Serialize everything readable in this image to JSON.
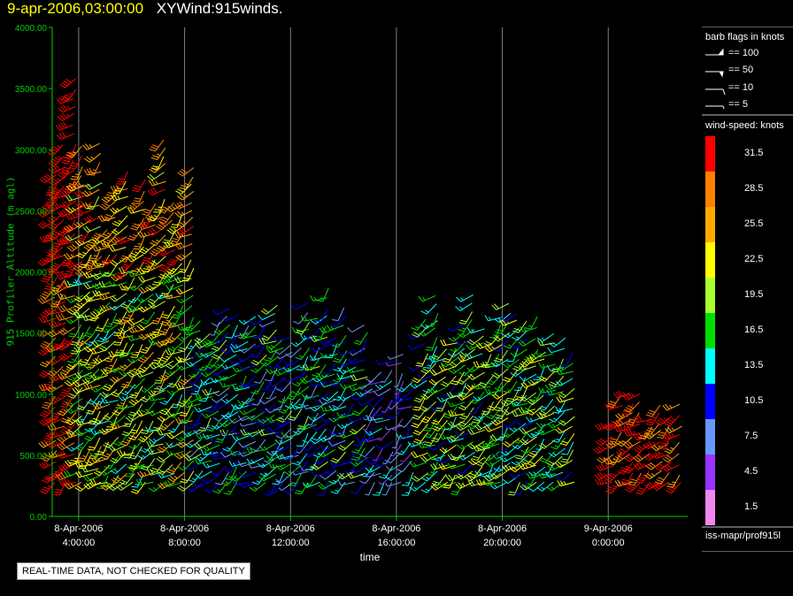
{
  "title": {
    "date": "9-apr-2006,03:00:00",
    "name": "XYWind:915winds."
  },
  "colors": {
    "grid": "#808080",
    "axis": "#00cc00",
    "tick_text": "#00cc00"
  },
  "chart_data": {
    "type": "scatter",
    "xlabel": "time",
    "ylabel": "915 Profiler Altitude (m agl)",
    "ylim": [
      0,
      4000
    ],
    "y_ticks": [
      "0.00",
      "500.00",
      "1000.00",
      "1500.00",
      "2000.00",
      "2500.00",
      "3000.00",
      "3500.00",
      "4000.00"
    ],
    "x_ticks": [
      {
        "date": "8-Apr-2006",
        "time": "4:00:00"
      },
      {
        "date": "8-Apr-2006",
        "time": "8:00:00"
      },
      {
        "date": "8-Apr-2006",
        "time": "12:00:00"
      },
      {
        "date": "8-Apr-2006",
        "time": "16:00:00"
      },
      {
        "date": "8-Apr-2006",
        "time": "20:00:00"
      },
      {
        "date": "9-Apr-2006",
        "time": "0:00:00"
      }
    ],
    "xlim": [
      "2006-04-08T03:00:00",
      "2006-04-09T03:00:00"
    ],
    "grid": "vertical",
    "legend_position": "right",
    "flag_legend_title": "barb flags in knots",
    "flag_legend": [
      "== 100",
      "== 50",
      "== 10",
      "== 5"
    ],
    "speed_legend_title": "wind-speed: knots",
    "speed_bins": [
      {
        "label": "31.5",
        "color": "#ff0000"
      },
      {
        "label": "28.5",
        "color": "#ff8000"
      },
      {
        "label": "25.5",
        "color": "#ffaa00"
      },
      {
        "label": "22.5",
        "color": "#ffff00"
      },
      {
        "label": "19.5",
        "color": "#aaff33"
      },
      {
        "label": "16.5",
        "color": "#00dd00"
      },
      {
        "label": "13.5",
        "color": "#00ffff"
      },
      {
        "label": "10.5",
        "color": "#0000ff"
      },
      {
        "label": "7.5",
        "color": "#6699ff"
      },
      {
        "label": "4.5",
        "color": "#9933ff"
      },
      {
        "label": "1.5",
        "color": "#ee88ee"
      }
    ],
    "profile_groups": [
      {
        "start": "2006-04-08T03:00:00",
        "end": "2006-04-08T04:00:00",
        "alt_min": 280,
        "alt_max": 4000,
        "speed_mean": 31
      },
      {
        "start": "2006-04-08T04:00:00",
        "end": "2006-04-08T08:30:00",
        "alt_min": 280,
        "alt_max": 3300,
        "speed_mean": 20
      },
      {
        "start": "2006-04-08T08:30:00",
        "end": "2006-04-08T15:00:00",
        "alt_min": 280,
        "alt_max": 1950,
        "speed_mean": 13
      },
      {
        "start": "2006-04-08T15:00:00",
        "end": "2006-04-08T17:00:00",
        "alt_min": 280,
        "alt_max": 1500,
        "speed_mean": 9
      },
      {
        "start": "2006-04-08T17:00:00",
        "end": "2006-04-08T23:00:00",
        "alt_min": 280,
        "alt_max": 1900,
        "speed_mean": 17
      },
      {
        "start": "2006-04-09T00:00:00",
        "end": "2006-04-09T03:00:00",
        "alt_min": 280,
        "alt_max": 1100,
        "speed_mean": 31
      }
    ]
  },
  "footer": {
    "quality_note": "REAL-TIME DATA, NOT CHECKED FOR QUALITY",
    "source": "iss-mapr/prof915l"
  }
}
